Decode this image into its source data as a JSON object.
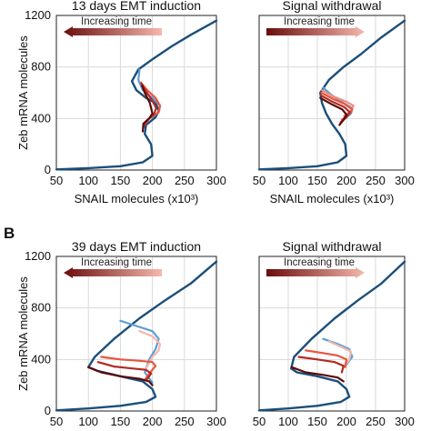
{
  "panel_labels": {
    "B": "B"
  },
  "chart_data": [
    {
      "type": "line",
      "title": "13 days EMT induction",
      "xlabel": "SNAIL molecules (x10³)",
      "ylabel": "Zeb mRNA molecules",
      "xlim": [
        50,
        300
      ],
      "ylim": [
        0,
        1200
      ],
      "xticks": [
        "50",
        "100",
        "150",
        "200",
        "250",
        "300"
      ],
      "yticks": [
        "0",
        "400",
        "800",
        "1200"
      ],
      "legend": {
        "text": "Increasing time",
        "arrow_direction": "left",
        "gradient": [
          "#6b0d0d",
          "#f4b8ae"
        ]
      },
      "series": [
        {
          "color": "#1b4f7a",
          "points": [
            [
              50,
              5
            ],
            [
              100,
              15
            ],
            [
              150,
              30
            ],
            [
              185,
              60
            ],
            [
              200,
              110
            ],
            [
              198,
              200
            ],
            [
              188,
              280
            ],
            [
              190,
              350
            ],
            [
              205,
              410
            ],
            [
              210,
              460
            ],
            [
              205,
              520
            ],
            [
              190,
              560
            ],
            [
              175,
              620
            ],
            [
              168,
              690
            ],
            [
              178,
              780
            ],
            [
              200,
              860
            ],
            [
              230,
              960
            ],
            [
              260,
              1050
            ],
            [
              300,
              1160
            ]
          ]
        },
        {
          "color": "#5b9ed6",
          "points": [
            [
              180,
              780
            ],
            [
              178,
              700
            ],
            [
              185,
              620
            ],
            [
              200,
              560
            ],
            [
              212,
              500
            ],
            [
              210,
              450
            ],
            [
              200,
              410
            ]
          ]
        },
        {
          "color": "#e9553f",
          "points": [
            [
              182,
              680
            ],
            [
              192,
              620
            ],
            [
              205,
              560
            ],
            [
              212,
              500
            ],
            [
              210,
              450
            ],
            [
              195,
              400
            ],
            [
              188,
              350
            ]
          ]
        },
        {
          "color": "#b02a22",
          "points": [
            [
              183,
              670
            ],
            [
              190,
              610
            ],
            [
              200,
              540
            ],
            [
              206,
              480
            ],
            [
              202,
              430
            ],
            [
              190,
              380
            ],
            [
              186,
              330
            ]
          ]
        },
        {
          "color": "#5a0c0c",
          "points": [
            [
              184,
              655
            ],
            [
              188,
              600
            ],
            [
              196,
              520
            ],
            [
              200,
              440
            ],
            [
              195,
              400
            ],
            [
              186,
              360
            ],
            [
              185,
              300
            ]
          ]
        }
      ]
    },
    {
      "type": "line",
      "title": "Signal withdrawal",
      "xlabel": "SNAIL molecules (x10³)",
      "ylabel": "",
      "xlim": [
        50,
        300
      ],
      "ylim": [
        0,
        1200
      ],
      "xticks": [
        "50",
        "100",
        "150",
        "200",
        "250",
        "300"
      ],
      "yticks": [],
      "legend": {
        "text": "Increasing time",
        "arrow_direction": "right",
        "gradient": [
          "#6b0d0d",
          "#f4b8ae"
        ]
      },
      "series": [
        {
          "color": "#1b4f7a",
          "points": [
            [
              50,
              5
            ],
            [
              100,
              15
            ],
            [
              150,
              30
            ],
            [
              185,
              60
            ],
            [
              200,
              110
            ],
            [
              198,
              200
            ],
            [
              188,
              280
            ],
            [
              175,
              360
            ],
            [
              165,
              440
            ],
            [
              158,
              520
            ],
            [
              155,
              600
            ],
            [
              170,
              700
            ],
            [
              195,
              800
            ],
            [
              225,
              900
            ],
            [
              260,
              1030
            ],
            [
              300,
              1160
            ]
          ]
        },
        {
          "color": "#5b9ed6",
          "points": [
            [
              160,
              640
            ],
            [
              175,
              580
            ],
            [
              195,
              520
            ],
            [
              210,
              480
            ],
            [
              208,
              440
            ],
            [
              198,
              400
            ]
          ]
        },
        {
          "color": "#f08a7a",
          "points": [
            [
              158,
              620
            ],
            [
              178,
              570
            ],
            [
              200,
              530
            ],
            [
              212,
              500
            ],
            [
              208,
              460
            ],
            [
              196,
              420
            ]
          ]
        },
        {
          "color": "#e9553f",
          "points": [
            [
              157,
              600
            ],
            [
              178,
              550
            ],
            [
              198,
              510
            ],
            [
              210,
              470
            ],
            [
              204,
              430
            ],
            [
              192,
              390
            ]
          ]
        },
        {
          "color": "#b02a22",
          "points": [
            [
              156,
              580
            ],
            [
              176,
              530
            ],
            [
              196,
              490
            ],
            [
              206,
              450
            ],
            [
              200,
              410
            ],
            [
              190,
              370
            ]
          ]
        },
        {
          "color": "#5a0c0c",
          "points": [
            [
              155,
              560
            ],
            [
              175,
              510
            ],
            [
              193,
              470
            ],
            [
              200,
              430
            ],
            [
              195,
              390
            ],
            [
              188,
              350
            ]
          ]
        }
      ]
    },
    {
      "type": "line",
      "title": "39 days EMT induction",
      "xlabel": "",
      "ylabel": "Zeb mRNA molecules",
      "xlim": [
        50,
        300
      ],
      "ylim": [
        0,
        1200
      ],
      "xticks": [
        "50",
        "100",
        "150",
        "200",
        "250",
        "300"
      ],
      "yticks": [
        "0",
        "400",
        "800",
        "1200"
      ],
      "legend": {
        "text": "Increasing time",
        "arrow_direction": "left",
        "gradient": [
          "#6b0d0d",
          "#f4b8ae"
        ]
      },
      "series": [
        {
          "color": "#1b4f7a",
          "points": [
            [
              50,
              5
            ],
            [
              100,
              20
            ],
            [
              150,
              40
            ],
            [
              190,
              70
            ],
            [
              205,
              110
            ],
            [
              200,
              170
            ],
            [
              185,
              230
            ],
            [
              150,
              270
            ],
            [
              115,
              310
            ],
            [
              100,
              340
            ],
            [
              110,
              420
            ],
            [
              140,
              560
            ],
            [
              180,
              720
            ],
            [
              220,
              860
            ],
            [
              260,
              990
            ],
            [
              300,
              1160
            ]
          ]
        },
        {
          "color": "#5b9ed6",
          "points": [
            [
              150,
              700
            ],
            [
              175,
              660
            ],
            [
              200,
              620
            ],
            [
              210,
              560
            ],
            [
              205,
              480
            ],
            [
              195,
              400
            ],
            [
              188,
              300
            ],
            [
              200,
              220
            ]
          ]
        },
        {
          "color": "#f4b8ae",
          "points": [
            [
              180,
              620
            ],
            [
              200,
              580
            ],
            [
              212,
              520
            ],
            [
              210,
              470
            ],
            [
              200,
              420
            ],
            [
              190,
              330
            ]
          ]
        },
        {
          "color": "#e9553f",
          "points": [
            [
              120,
              420
            ],
            [
              150,
              400
            ],
            [
              180,
              390
            ],
            [
              200,
              380
            ],
            [
              205,
              350
            ],
            [
              195,
              290
            ],
            [
              188,
              240
            ]
          ]
        },
        {
          "color": "#b02a22",
          "points": [
            [
              115,
              380
            ],
            [
              140,
              345
            ],
            [
              170,
              330
            ],
            [
              190,
              320
            ],
            [
              198,
              290
            ],
            [
              192,
              250
            ]
          ]
        },
        {
          "color": "#5a0c0c",
          "points": [
            [
              100,
              340
            ],
            [
              120,
              300
            ],
            [
              150,
              270
            ],
            [
              180,
              250
            ],
            [
              195,
              230
            ],
            [
              200,
              200
            ]
          ]
        }
      ]
    },
    {
      "type": "line",
      "title": "Signal withdrawal",
      "xlabel": "",
      "ylabel": "",
      "xlim": [
        50,
        300
      ],
      "ylim": [
        0,
        1200
      ],
      "xticks": [
        "50",
        "100",
        "150",
        "200",
        "250",
        "300"
      ],
      "yticks": [],
      "legend": {
        "text": "Increasing time",
        "arrow_direction": "right",
        "gradient": [
          "#6b0d0d",
          "#f4b8ae"
        ]
      },
      "series": [
        {
          "color": "#1b4f7a",
          "points": [
            [
              50,
              5
            ],
            [
              100,
              20
            ],
            [
              150,
              40
            ],
            [
              190,
              70
            ],
            [
              205,
              110
            ],
            [
              200,
              170
            ],
            [
              185,
              230
            ],
            [
              150,
              270
            ],
            [
              115,
              300
            ],
            [
              105,
              330
            ],
            [
              110,
              420
            ],
            [
              140,
              560
            ],
            [
              180,
              720
            ],
            [
              220,
              860
            ],
            [
              260,
              990
            ],
            [
              300,
              1160
            ]
          ]
        },
        {
          "color": "#5b9ed6",
          "points": [
            [
              160,
              560
            ],
            [
              185,
              520
            ],
            [
              205,
              480
            ],
            [
              210,
              420
            ],
            [
              200,
              360
            ]
          ]
        },
        {
          "color": "#f4b8ae",
          "points": [
            [
              170,
              540
            ],
            [
              190,
              500
            ],
            [
              208,
              460
            ],
            [
              205,
              400
            ],
            [
              195,
              340
            ]
          ]
        },
        {
          "color": "#e9553f",
          "points": [
            [
              130,
              470
            ],
            [
              160,
              450
            ],
            [
              185,
              430
            ],
            [
              200,
              400
            ],
            [
              198,
              340
            ]
          ]
        },
        {
          "color": "#b02a22",
          "points": [
            [
              118,
              420
            ],
            [
              150,
              400
            ],
            [
              180,
              380
            ],
            [
              195,
              350
            ],
            [
              192,
              300
            ]
          ]
        },
        {
          "color": "#5a0c0c",
          "points": [
            [
              106,
              340
            ],
            [
              130,
              300
            ],
            [
              160,
              280
            ],
            [
              185,
              260
            ],
            [
              195,
              230
            ]
          ]
        }
      ]
    }
  ]
}
